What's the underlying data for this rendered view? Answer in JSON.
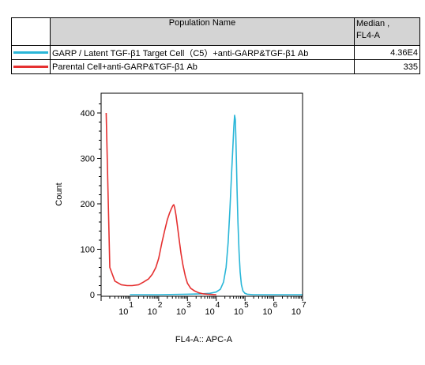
{
  "legend": {
    "header_name": "Population Name",
    "header_median_1": "Median ,",
    "header_median_2": "FL4-A",
    "rows": [
      {
        "label": "GARP / Latent TGF-β1 Target Cell（C5）+anti-GARP&TGF-β1 Ab",
        "median": "4.36E4",
        "color": "#29b6d8"
      },
      {
        "label": "Parental Cell+anti-GARP&TGF-β1 Ab",
        "median": "335",
        "color": "#e53030"
      }
    ]
  },
  "chart_data": {
    "type": "line",
    "title": "",
    "xlabel": "FL4-A:: APC-A",
    "ylabel": "Count",
    "x_scale": "log",
    "xlim": [
      1,
      10000000
    ],
    "ylim": [
      0,
      440
    ],
    "x_tick_labels": [
      {
        "base": "10",
        "exp": "1"
      },
      {
        "base": "10",
        "exp": "2"
      },
      {
        "base": "10",
        "exp": "3"
      },
      {
        "base": "10",
        "exp": "4"
      },
      {
        "base": "10",
        "exp": "5"
      },
      {
        "base": "10",
        "exp": "6"
      },
      {
        "base": "10",
        "exp": "7"
      }
    ],
    "y_ticks": [
      0,
      100,
      200,
      300,
      400
    ],
    "series": [
      {
        "name": "GARP / Latent TGF-β1 Target Cell（C5）+anti-GARP&TGF-β1 Ab",
        "color": "#29b6d8",
        "x": [
          10,
          100,
          1000,
          3000,
          6000,
          10000,
          14000,
          18000,
          22000,
          26000,
          30000,
          34000,
          38000,
          41000,
          43600,
          46000,
          48000,
          50000,
          53000,
          57000,
          62000,
          68000,
          75000,
          85000,
          100000,
          120000,
          200000,
          1000000,
          10000000
        ],
        "y": [
          0,
          0,
          1,
          2,
          3,
          6,
          12,
          28,
          60,
          115,
          190,
          265,
          325,
          370,
          395,
          385,
          350,
          300,
          230,
          160,
          95,
          50,
          22,
          8,
          3,
          1,
          0,
          0,
          0
        ]
      },
      {
        "name": "Parental Cell+anti-GARP&TGF-β1 Ab",
        "color": "#e53030",
        "x": [
          1.5,
          2,
          3,
          5,
          8,
          12,
          20,
          30,
          45,
          60,
          80,
          100,
          130,
          160,
          200,
          240,
          280,
          310,
          335,
          360,
          400,
          450,
          520,
          600,
          700,
          850,
          1000,
          1300,
          1800,
          2500,
          3500,
          5000,
          10000
        ],
        "y": [
          400,
          60,
          30,
          22,
          20,
          20,
          22,
          28,
          35,
          45,
          60,
          80,
          115,
          140,
          165,
          180,
          190,
          196,
          198,
          192,
          175,
          150,
          120,
          90,
          65,
          40,
          25,
          14,
          8,
          4,
          2,
          1,
          0
        ]
      }
    ]
  }
}
